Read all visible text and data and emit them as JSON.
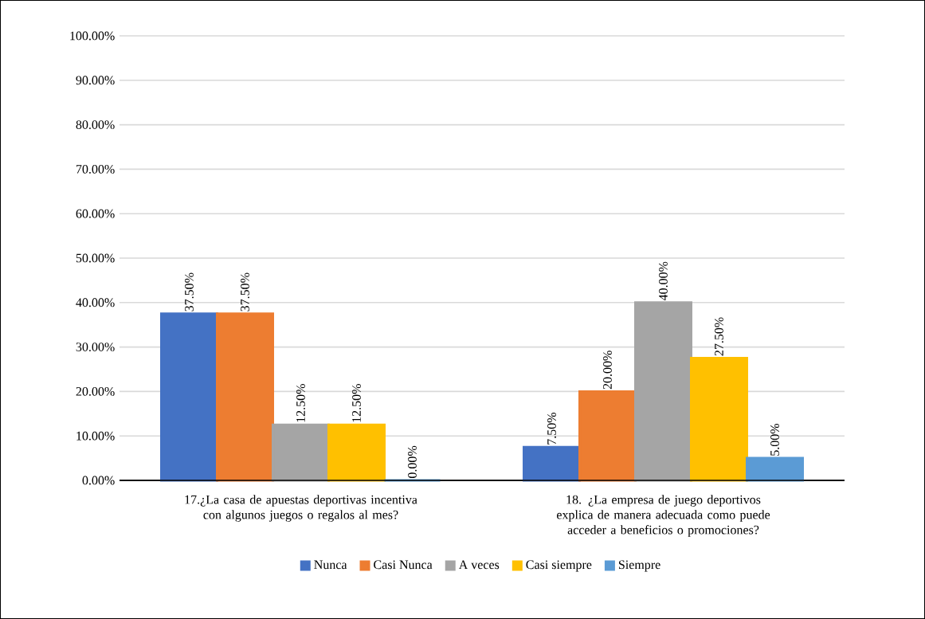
{
  "chart_data": {
    "type": "bar",
    "categories": [
      "17.¿La casa de apuestas deportivas incentiva con algunos juegos o regalos al mes?",
      "18. ¿La empresa de juego deportivos explica de manera adecuada como puede acceder a beneficios o promociones?"
    ],
    "series": [
      {
        "name": "Nunca",
        "color": "#4472c4",
        "values": [
          37.5,
          7.5
        ],
        "value_labels": [
          "37.50%",
          "7.50%"
        ]
      },
      {
        "name": "Casi Nunca",
        "color": "#ed7d31",
        "values": [
          37.5,
          20
        ],
        "value_labels": [
          "37.50%",
          "20.00%"
        ]
      },
      {
        "name": "A veces",
        "color": "#a5a5a5",
        "values": [
          12.5,
          40
        ],
        "value_labels": [
          "12.50%",
          "40.00%"
        ]
      },
      {
        "name": "Casi siempre",
        "color": "#ffc000",
        "values": [
          12.5,
          27.5
        ],
        "value_labels": [
          "12.50%",
          "27.50%"
        ]
      },
      {
        "name": "Siempre",
        "color": "#5b9bd5",
        "values": [
          0,
          5
        ],
        "value_labels": [
          "0.00%",
          "5.00%"
        ]
      }
    ],
    "ylim": [
      0,
      100
    ],
    "yticks": [
      {
        "value": 0,
        "label": "0.00%"
      },
      {
        "value": 10,
        "label": "10.00%"
      },
      {
        "value": 20,
        "label": "20.00%"
      },
      {
        "value": 30,
        "label": "30.00%"
      },
      {
        "value": 40,
        "label": "40.00%"
      },
      {
        "value": 50,
        "label": "50.00%"
      },
      {
        "value": 60,
        "label": "60.00%"
      },
      {
        "value": 70,
        "label": "70.00%"
      },
      {
        "value": 80,
        "label": "80.00%"
      },
      {
        "value": 90,
        "label": "90.00%"
      },
      {
        "value": 100,
        "label": "100.00%"
      }
    ],
    "grid": "y",
    "legend": "bottom"
  }
}
